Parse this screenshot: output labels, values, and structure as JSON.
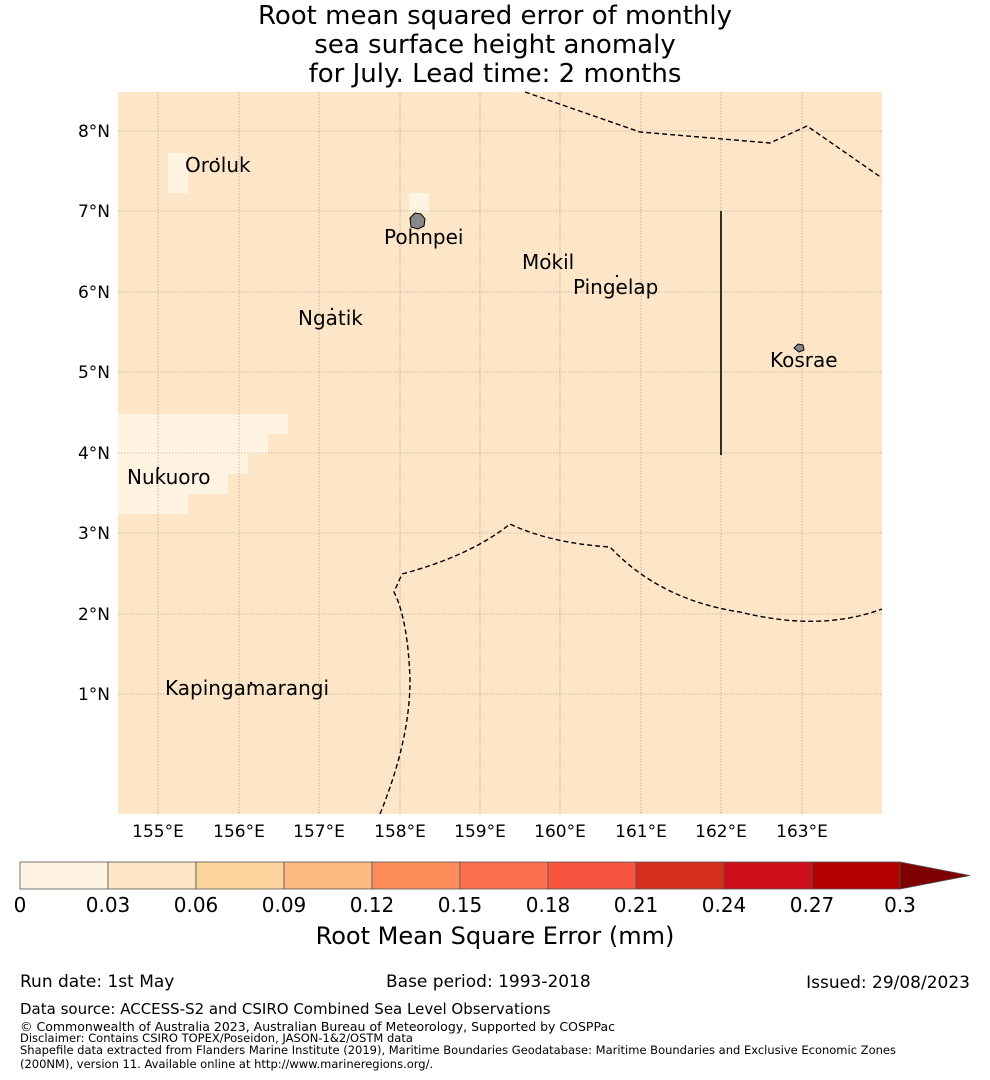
{
  "title": {
    "line1": "Root mean squared error of monthly",
    "line2": "sea surface height anomaly",
    "line3": "for July. Lead time: 2 months"
  },
  "map": {
    "background_color": "#fde6c8",
    "x_ticks": [
      "155°E",
      "156°E",
      "157°E",
      "158°E",
      "159°E",
      "160°E",
      "161°E",
      "162°E",
      "163°E"
    ],
    "y_ticks": [
      "8°N",
      "7°N",
      "6°N",
      "5°N",
      "4°N",
      "3°N",
      "2°N",
      "1°N"
    ],
    "islands": [
      "Oroluk",
      "Pohnpei",
      "Mokil",
      "Pingelap",
      "Ngatik",
      "Kosrae",
      "Nukuoro",
      "Kapingamarangi"
    ]
  },
  "colorbar": {
    "ticks": [
      "0",
      "0.03",
      "0.06",
      "0.09",
      "0.12",
      "0.15",
      "0.18",
      "0.21",
      "0.24",
      "0.27",
      "0.3"
    ],
    "colors": [
      "#fff3e1",
      "#fde6c8",
      "#fdd49e",
      "#fdbb84",
      "#fc8d59",
      "#fc6f4f",
      "#f7553f",
      "#d7301f",
      "#cc0f18",
      "#b30000"
    ],
    "extend_color": "#7f0000",
    "label": "Root Mean Square Error (mm)"
  },
  "footer": {
    "run_date": "Run date: 1st May",
    "base_period": "Base period: 1993-2018",
    "issued": "Issued: 29/08/2023",
    "data_source": "Data source: ACCESS-S2 and CSIRO Combined Sea Level Observations",
    "copyright": "© Commonwealth of Australia 2023, Australian Bureau of Meteorology, Supported by COSPPac",
    "disclaimer": "Disclaimer: Contains CSIRO TOPEX/Poseidon, JASON-1&2/OSTM data",
    "shapefile1": "Shapefile data extracted from Flanders Marine Institute (2019), Maritime Boundaries Geodatabase: Maritime Boundaries and Exclusive Economic Zones",
    "shapefile2": "(200NM), version 11. Available online at http://www.marineregions.org/."
  }
}
